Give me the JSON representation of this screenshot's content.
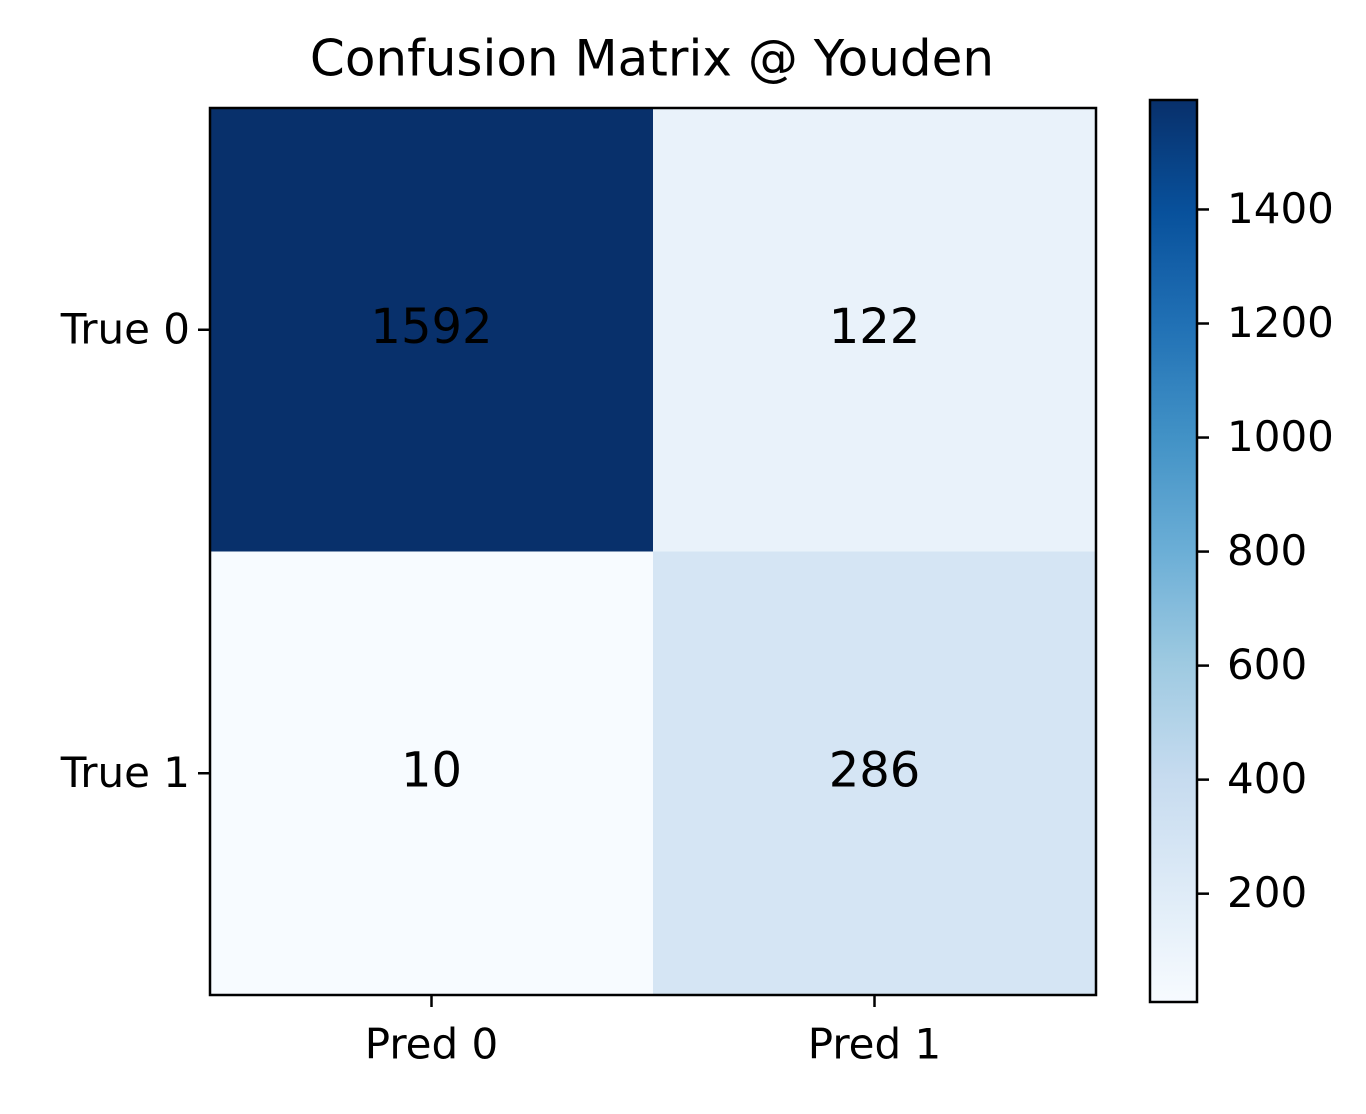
{
  "chart_data": {
    "type": "heatmap",
    "title": "Confusion Matrix @ Youden",
    "x_categories": [
      "Pred 0",
      "Pred 1"
    ],
    "y_categories": [
      "True 0",
      "True 1"
    ],
    "values": [
      [
        1592,
        122
      ],
      [
        10,
        286
      ]
    ],
    "colormap": "Blues",
    "clim": [
      10,
      1592
    ],
    "cticks": [
      200,
      400,
      600,
      800,
      1000,
      1200,
      1400
    ]
  }
}
